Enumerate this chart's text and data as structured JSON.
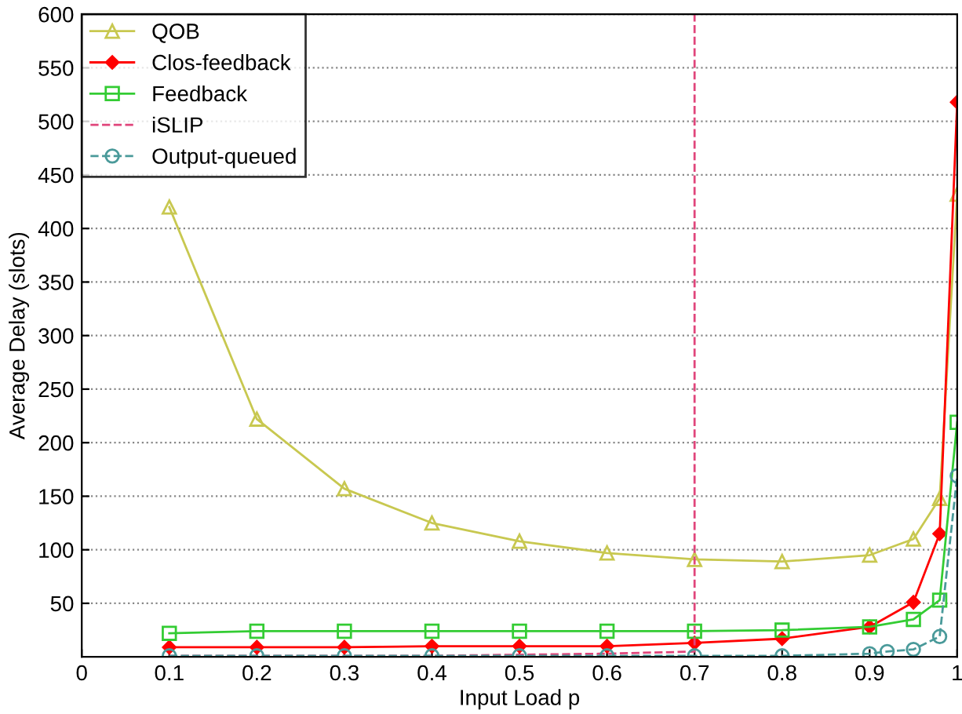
{
  "chart_data": {
    "type": "line",
    "xlabel": "Input Load p",
    "ylabel": "Average Delay (slots)",
    "xlim": [
      0,
      1
    ],
    "xticks": [
      0,
      0.1,
      0.2,
      0.3,
      0.4,
      0.5,
      0.6,
      0.7,
      0.8,
      0.9,
      1
    ],
    "ylim": [
      0,
      600
    ],
    "yticks": [
      50,
      100,
      150,
      200,
      250,
      300,
      350,
      400,
      450,
      500,
      550,
      600
    ],
    "grid": "y",
    "legend": "top left",
    "series": [
      {
        "name": "QOB",
        "color": "#c8c850",
        "marker": "triangle",
        "line_style": "solid",
        "x": [
          0.1,
          0.2,
          0.3,
          0.4,
          0.5,
          0.6,
          0.7,
          0.8,
          0.9,
          0.95,
          0.98,
          1.0
        ],
        "values": [
          420,
          222,
          157,
          125,
          108,
          97,
          91,
          89,
          95,
          110,
          148,
          432
        ]
      },
      {
        "name": "Clos-feedback",
        "color": "#ff0000",
        "marker": "diamond",
        "line_style": "solid",
        "x": [
          0.1,
          0.2,
          0.3,
          0.4,
          0.5,
          0.6,
          0.7,
          0.8,
          0.9,
          0.95,
          0.98,
          1.0
        ],
        "values": [
          9,
          9,
          9,
          10,
          10,
          10,
          13,
          17,
          28,
          51,
          115,
          518
        ]
      },
      {
        "name": "Feedback",
        "color": "#33cc33",
        "marker": "square",
        "line_style": "solid",
        "x": [
          0.1,
          0.2,
          0.3,
          0.4,
          0.5,
          0.6,
          0.7,
          0.8,
          0.9,
          0.95,
          0.98,
          1.0
        ],
        "values": [
          22,
          24,
          24,
          24,
          24,
          24,
          24,
          25,
          28,
          35,
          53,
          219
        ]
      },
      {
        "name": "iSLIP",
        "color": "#e0457b",
        "marker": "none",
        "line_style": "dashed",
        "x": [
          0.1,
          0.2,
          0.3,
          0.4,
          0.5,
          0.6,
          0.7,
          0.7
        ],
        "values": [
          1,
          1,
          1,
          1,
          2,
          3,
          5,
          600
        ]
      },
      {
        "name": "Output-queued",
        "color": "#4a9a9a",
        "marker": "circle",
        "line_style": "dashed",
        "x": [
          0.1,
          0.2,
          0.3,
          0.4,
          0.5,
          0.6,
          0.7,
          0.8,
          0.9,
          0.92,
          0.95,
          0.98,
          1.0
        ],
        "values": [
          1,
          1,
          1,
          1,
          1,
          1,
          1,
          1,
          3,
          5,
          7,
          19,
          169
        ]
      }
    ]
  }
}
